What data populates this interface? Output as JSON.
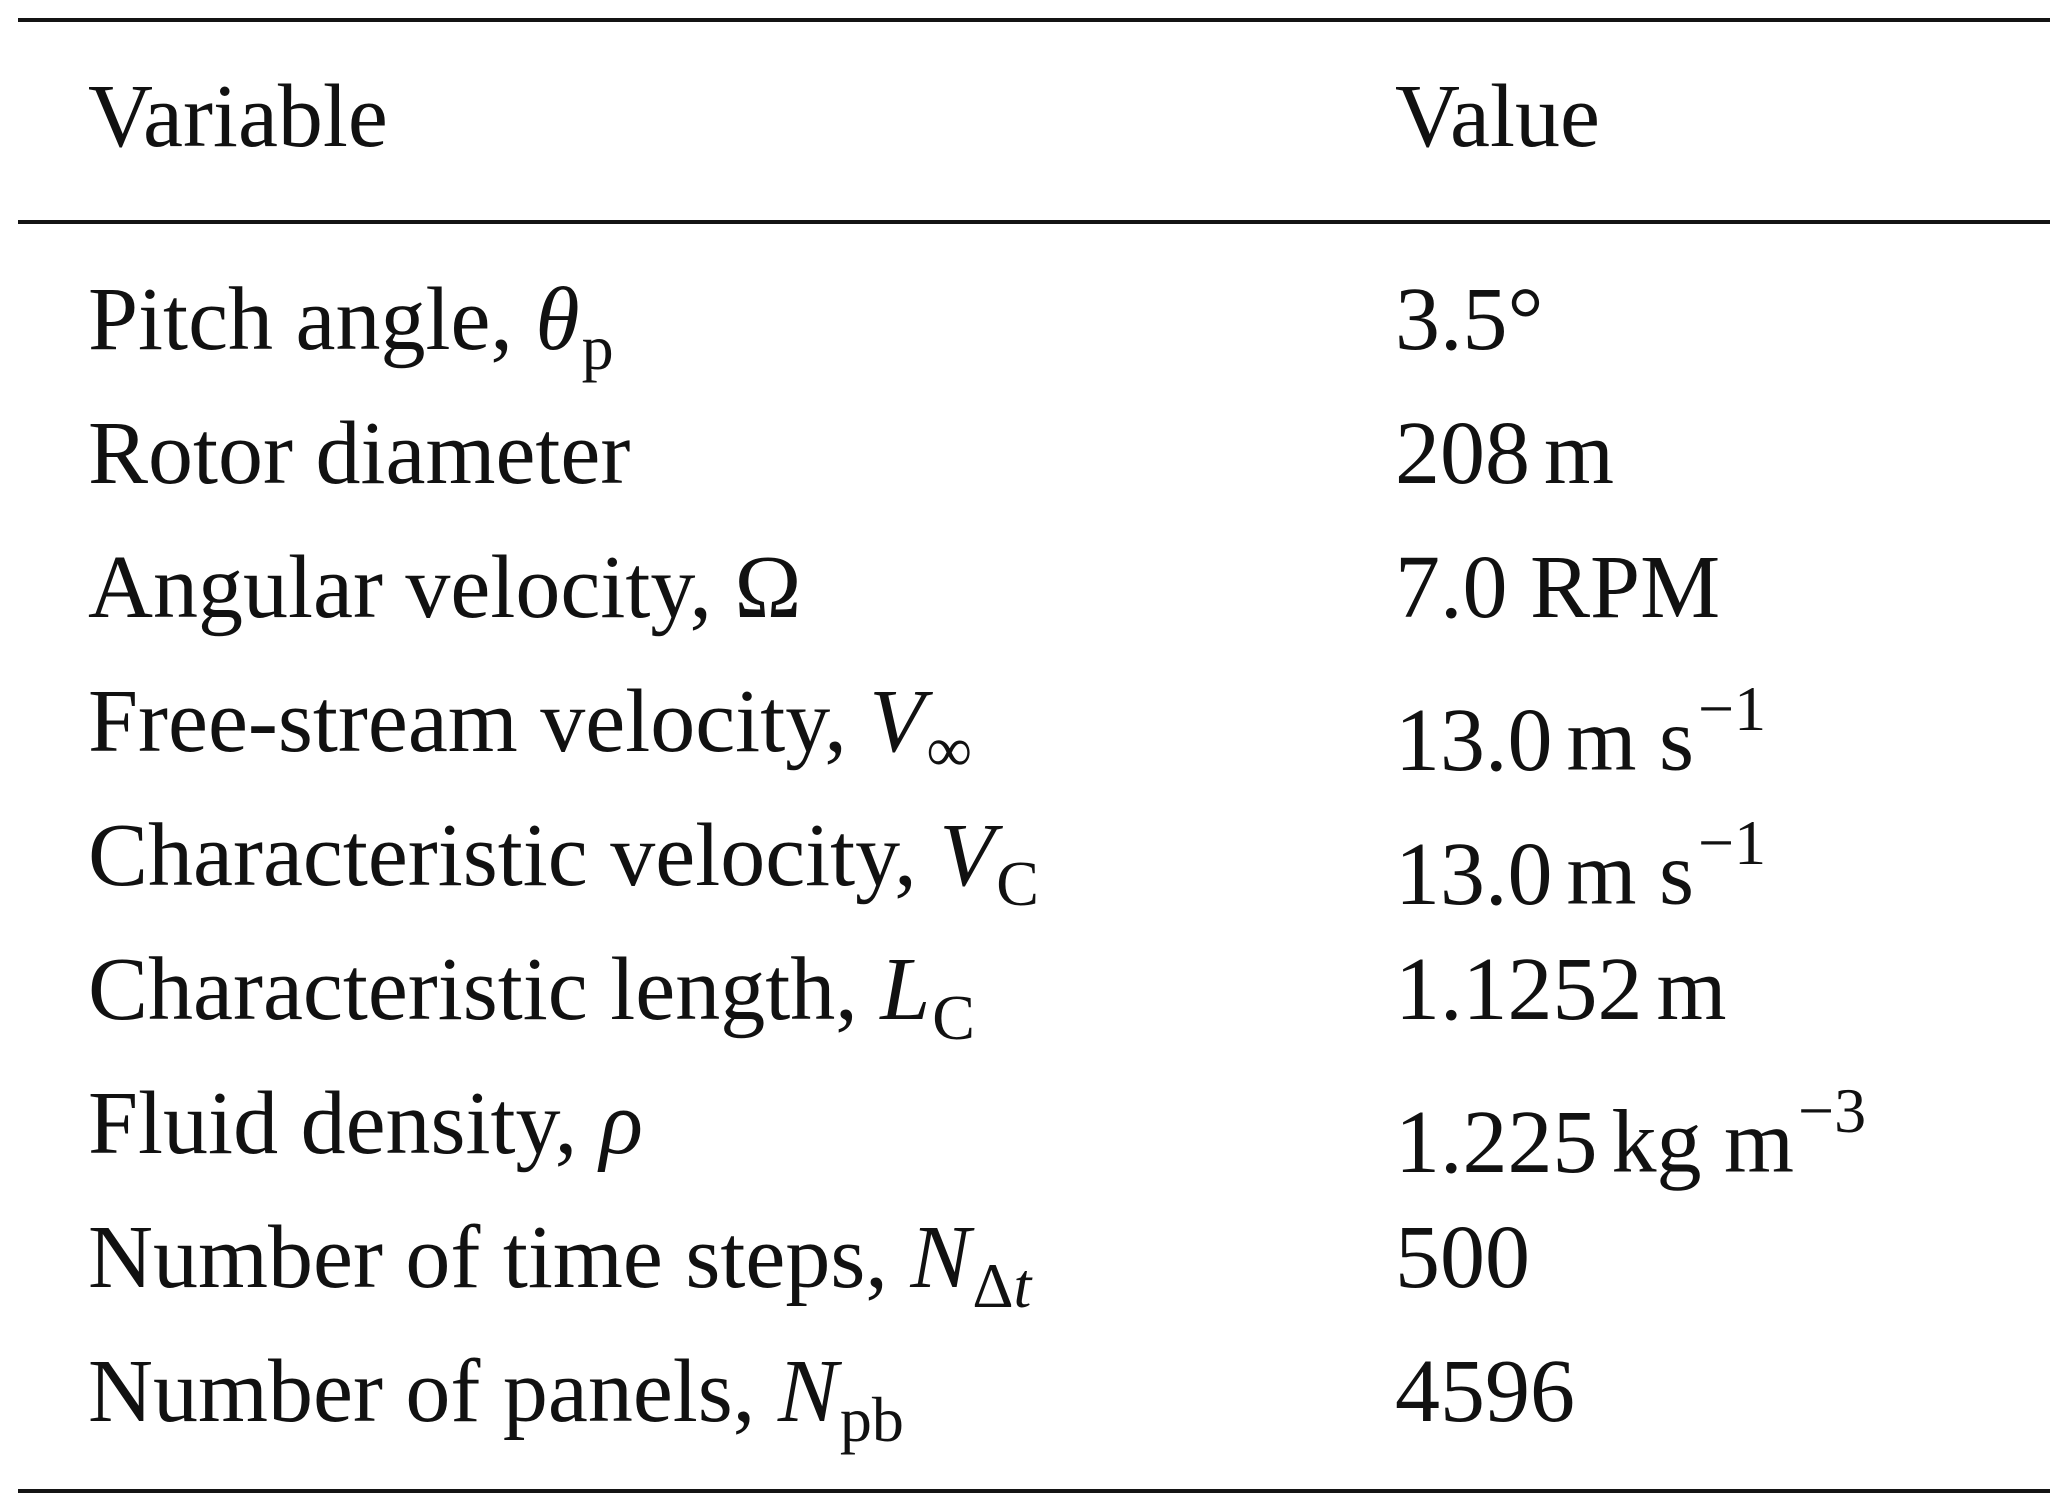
{
  "table": {
    "header": {
      "variable": "Variable",
      "value": "Value"
    },
    "rows": [
      {
        "label": "Pitch angle, ",
        "symbol": "θ",
        "sub": "p",
        "sub_italic": "",
        "value": "3.5°",
        "unit": "",
        "sup": ""
      },
      {
        "label": "Rotor diameter",
        "symbol": "",
        "sub": "",
        "sub_italic": "",
        "value": "208",
        "unit": "m",
        "sup": ""
      },
      {
        "label": "Angular velocity, Ω",
        "symbol": "",
        "sub": "",
        "sub_italic": "",
        "value": "7.0 RPM",
        "unit": "",
        "sup": ""
      },
      {
        "label": "Free-stream velocity, ",
        "symbol": "V",
        "sub": "∞",
        "sub_italic": "",
        "value": "13.0",
        "unit": "m s",
        "sup": "−1"
      },
      {
        "label": "Characteristic velocity, ",
        "symbol": "V",
        "sub": "C",
        "sub_italic": "",
        "value": "13.0",
        "unit": "m s",
        "sup": "−1"
      },
      {
        "label": "Characteristic length, ",
        "symbol": "L",
        "sub": "C",
        "sub_italic": "",
        "value": "1.1252",
        "unit": "m",
        "sup": ""
      },
      {
        "label": "Fluid density, ",
        "symbol": "ρ",
        "sub": "",
        "sub_italic": "",
        "value": "1.225",
        "unit": "kg m",
        "sup": "−3"
      },
      {
        "label": "Number of time steps, ",
        "symbol": "N",
        "sub": "Δ",
        "sub_italic": "t",
        "value": "500",
        "unit": "",
        "sup": ""
      },
      {
        "label": "Number of panels, ",
        "symbol": "N",
        "sub": "pb",
        "sub_italic": "",
        "value": "4596",
        "unit": "",
        "sup": ""
      }
    ]
  }
}
